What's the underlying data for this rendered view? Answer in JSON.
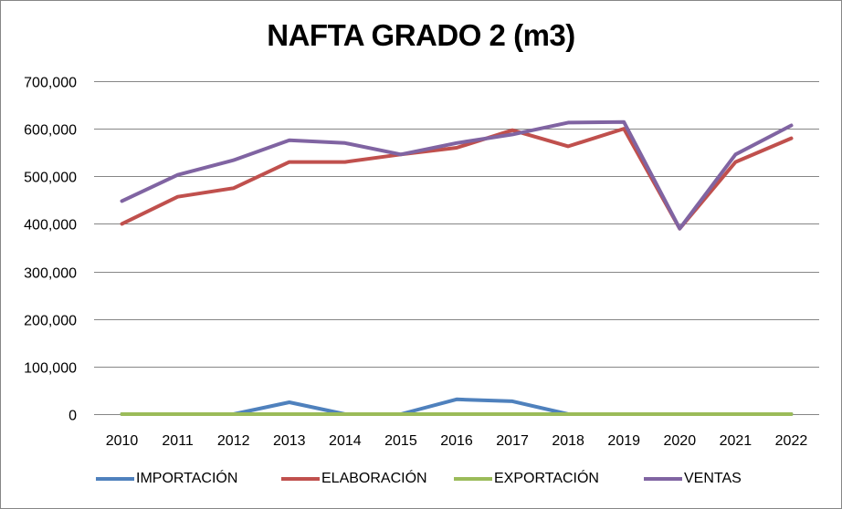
{
  "chart_data": {
    "type": "line",
    "title": "NAFTA GRADO 2 (m3)",
    "xlabel": "",
    "ylabel": "",
    "ylim": [
      0,
      700000
    ],
    "yticks": [
      0,
      100000,
      200000,
      300000,
      400000,
      500000,
      600000,
      700000
    ],
    "ytick_labels": [
      "0",
      "100,000",
      "200,000",
      "300,000",
      "400,000",
      "500,000",
      "600,000",
      "700,000"
    ],
    "grid": true,
    "legend_position": "bottom",
    "categories": [
      "2010",
      "2011",
      "2012",
      "2013",
      "2014",
      "2015",
      "2016",
      "2017",
      "2018",
      "2019",
      "2020",
      "2021",
      "2022"
    ],
    "series": [
      {
        "name": "IMPORTACIÓN",
        "color": "#4F81BD",
        "values": [
          0,
          0,
          0,
          25000,
          0,
          0,
          31000,
          27000,
          0,
          0,
          0,
          0,
          0
        ]
      },
      {
        "name": "ELABORACIÓN",
        "color": "#C0504D",
        "values": [
          400000,
          457000,
          475000,
          530000,
          530000,
          546000,
          560000,
          597000,
          563000,
          600000,
          390000,
          530000,
          580000
        ]
      },
      {
        "name": "EXPORTACIÓN",
        "color": "#9BBB59",
        "values": [
          0,
          0,
          0,
          0,
          0,
          0,
          0,
          0,
          0,
          0,
          0,
          0,
          0
        ]
      },
      {
        "name": "VENTAS",
        "color": "#8064A2",
        "values": [
          448000,
          503000,
          534000,
          576000,
          570000,
          546000,
          570000,
          588000,
          613000,
          614000,
          390000,
          546000,
          607000
        ]
      }
    ]
  }
}
